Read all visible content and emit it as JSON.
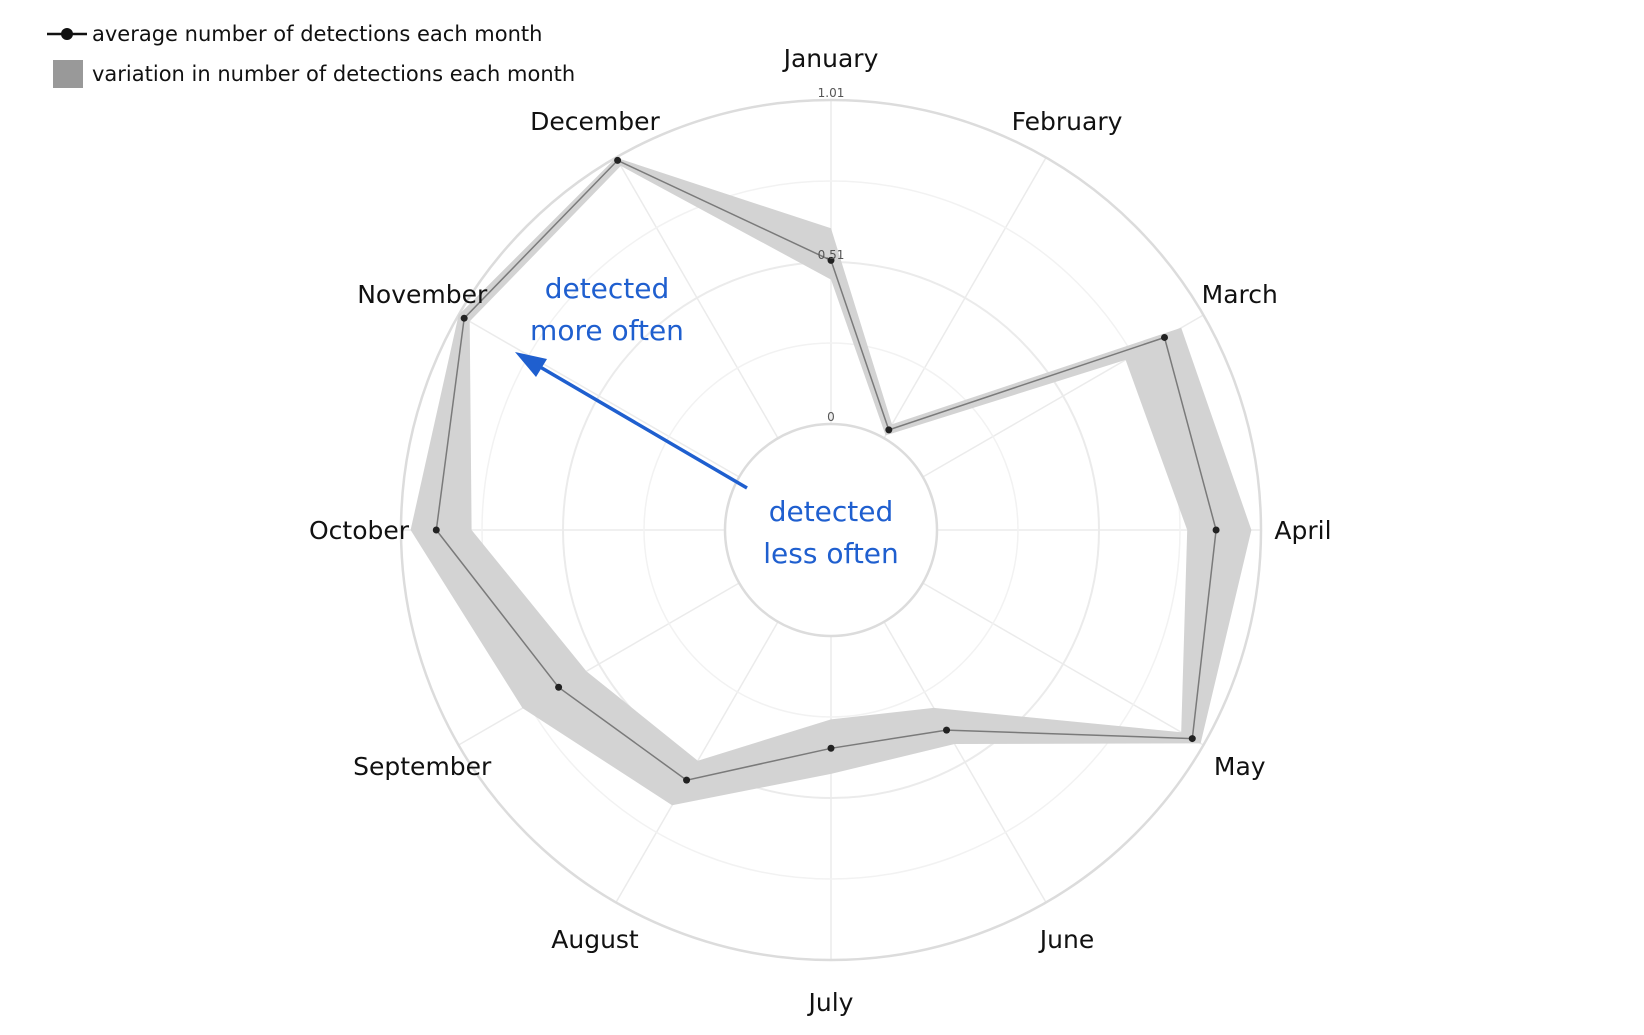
{
  "chart_data": {
    "type": "radar",
    "categories": [
      "January",
      "February",
      "March",
      "April",
      "May",
      "June",
      "July",
      "August",
      "September",
      "October",
      "November",
      "December"
    ],
    "series": [
      {
        "name": "average number of detections each month",
        "values": [
          0.51,
          0.03,
          0.87,
          0.87,
          0.97,
          0.39,
          0.35,
          0.57,
          0.65,
          0.9,
          0.99,
          1.0
        ],
        "range_low": [
          0.45,
          0.01,
          0.73,
          0.78,
          0.93,
          0.31,
          0.26,
          0.5,
          0.55,
          0.79,
          0.97,
          0.98
        ],
        "range_high": [
          0.61,
          0.05,
          0.93,
          0.98,
          1.0,
          0.44,
          0.43,
          0.66,
          0.78,
          0.98,
          1.01,
          1.01
        ]
      }
    ],
    "legend": {
      "line_label": "average number of detections each month",
      "band_label": "variation in number of detections each month",
      "placement": "top-left"
    },
    "radial_axis": {
      "range": [
        0,
        1.01
      ],
      "tick_labels": [
        "0",
        "0.51",
        "1.01"
      ]
    },
    "annotations": {
      "outer_line1": "detected",
      "outer_line2": "more often",
      "inner_line1": "detected",
      "inner_line2": "less often"
    },
    "colors": {
      "band": "#d3d3d3",
      "line": "#7a7a7a",
      "point": "#222222",
      "grid": "#ebebeb",
      "circle": "#dcdcdc",
      "annotation": "#1f5fcf",
      "legend_swatch": "#999999"
    }
  }
}
